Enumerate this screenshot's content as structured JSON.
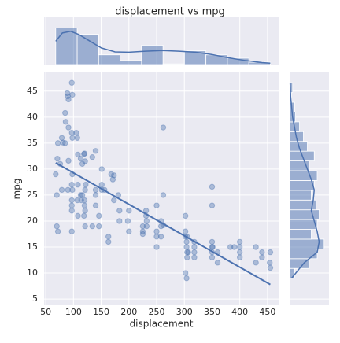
{
  "chart_data": [
    {
      "type": "scatter",
      "title": "displacement vs mpg",
      "xlabel": "displacement",
      "ylabel": "mpg",
      "color": "#4c72b0",
      "x": [
        97,
        89,
        90,
        91,
        98,
        86,
        85,
        91,
        97,
        105,
        79,
        85,
        81,
        98,
        107,
        108,
        120,
        121,
        119,
        140,
        113,
        116,
        134,
        151,
        91,
        72,
        68,
        76,
        71,
        70,
        79,
        90,
        97,
        98,
        97,
        97,
        97,
        98,
        116,
        120,
        121,
        122,
        107,
        108,
        113,
        114,
        121,
        120,
        140,
        140,
        140,
        146,
        151,
        151,
        156,
        168,
        171,
        173,
        173,
        181,
        183,
        146,
        134,
        121,
        108,
        72,
        70,
        97,
        119,
        200,
        200,
        198,
        225,
        225,
        225,
        232,
        232,
        231,
        250,
        250,
        250,
        258,
        258,
        262,
        250,
        262,
        258,
        302,
        302,
        304,
        305,
        305,
        305,
        302,
        307,
        318,
        318,
        318,
        302,
        304,
        304,
        350,
        350,
        350,
        350,
        350,
        350,
        351,
        360,
        360,
        383,
        390,
        400,
        400,
        400,
        400,
        429,
        429,
        440,
        455,
        454,
        455,
        440,
        318,
        262,
        163,
        163,
        183,
        231
      ],
      "y": [
        46.6,
        44.6,
        44,
        43.4,
        44.3,
        39.1,
        40.8,
        38,
        37,
        37,
        36,
        35,
        35.1,
        36,
        36,
        32.8,
        33,
        31.5,
        32.9,
        33.5,
        32,
        31,
        32.3,
        30,
        31.6,
        35,
        29,
        31,
        32,
        25,
        26,
        26,
        27,
        26,
        23,
        24,
        22,
        29,
        25,
        24,
        26,
        27,
        24,
        27,
        25,
        24,
        22,
        23,
        25,
        26,
        23,
        21,
        27,
        26,
        26,
        29,
        28,
        24,
        28.8,
        25,
        22,
        19,
        19,
        19,
        21,
        18,
        19,
        18,
        21,
        22,
        18,
        20,
        19,
        18,
        17.5,
        19,
        20,
        21,
        18,
        17,
        15,
        19,
        17,
        38,
        23,
        19.2,
        20,
        21,
        17,
        15,
        17,
        14,
        13,
        18,
        14,
        15,
        13,
        14,
        10,
        9,
        16,
        26.6,
        23,
        15,
        16,
        14,
        13,
        15,
        14,
        12,
        15,
        15,
        16,
        14,
        13,
        15,
        12,
        15,
        13,
        14,
        12,
        11,
        14,
        16,
        25,
        17,
        16,
        20,
        22
      ],
      "regression": {
        "x": [
          68,
          455
        ],
        "y": [
          31.2,
          7.8
        ]
      },
      "xlim": [
        47,
        470
      ],
      "ylim": [
        3.8,
        48.6
      ],
      "xticks": [
        50,
        100,
        150,
        200,
        250,
        300,
        350,
        400,
        450
      ],
      "yticks": [
        5,
        10,
        15,
        20,
        25,
        30,
        35,
        40,
        45
      ],
      "grid": true
    },
    {
      "type": "histogram",
      "orientation": "vertical",
      "color": "#4c72b0",
      "bins": [
        68,
        106.7,
        145.4,
        184.1,
        222.8,
        261.5,
        300.2,
        338.9,
        377.6,
        416.3,
        455
      ],
      "counts": [
        110,
        91,
        29,
        12,
        58,
        2,
        41,
        29,
        19,
        7
      ],
      "ylim": [
        0,
        142
      ],
      "kde": {
        "x": [
          68,
          80,
          95,
          110,
          130,
          150,
          175,
          200,
          230,
          260,
          290,
          320,
          350,
          380,
          410,
          440,
          455
        ],
        "y": [
          70,
          95,
          100,
          90,
          70,
          50,
          38,
          37,
          40,
          42,
          40,
          37,
          30,
          20,
          12,
          6,
          4
        ]
      }
    },
    {
      "type": "histogram",
      "orientation": "horizontal",
      "color": "#4c72b0",
      "bins": [
        9,
        10.88,
        12.76,
        14.64,
        16.52,
        18.4,
        20.28,
        22.16,
        24.04,
        25.92,
        27.8,
        29.68,
        31.56,
        33.44,
        35.32,
        37.2,
        39.08,
        40.96,
        42.84,
        44.72,
        46.6
      ],
      "counts": [
        5,
        20,
        28,
        35,
        22,
        28,
        30,
        27,
        22,
        25,
        28,
        20,
        25,
        18,
        14,
        10,
        6,
        5,
        2,
        3
      ],
      "xlim": [
        0,
        40
      ],
      "kde": {
        "x": [
          2,
          15,
          28,
          30,
          28,
          25,
          22,
          24,
          25,
          22,
          18,
          14,
          10,
          7,
          5,
          3,
          2,
          1,
          0.5
        ],
        "y": [
          9,
          12,
          14,
          16,
          18,
          20,
          22,
          24,
          26,
          28,
          30,
          32,
          34,
          36,
          38,
          40,
          42,
          44,
          46.6
        ]
      }
    }
  ]
}
